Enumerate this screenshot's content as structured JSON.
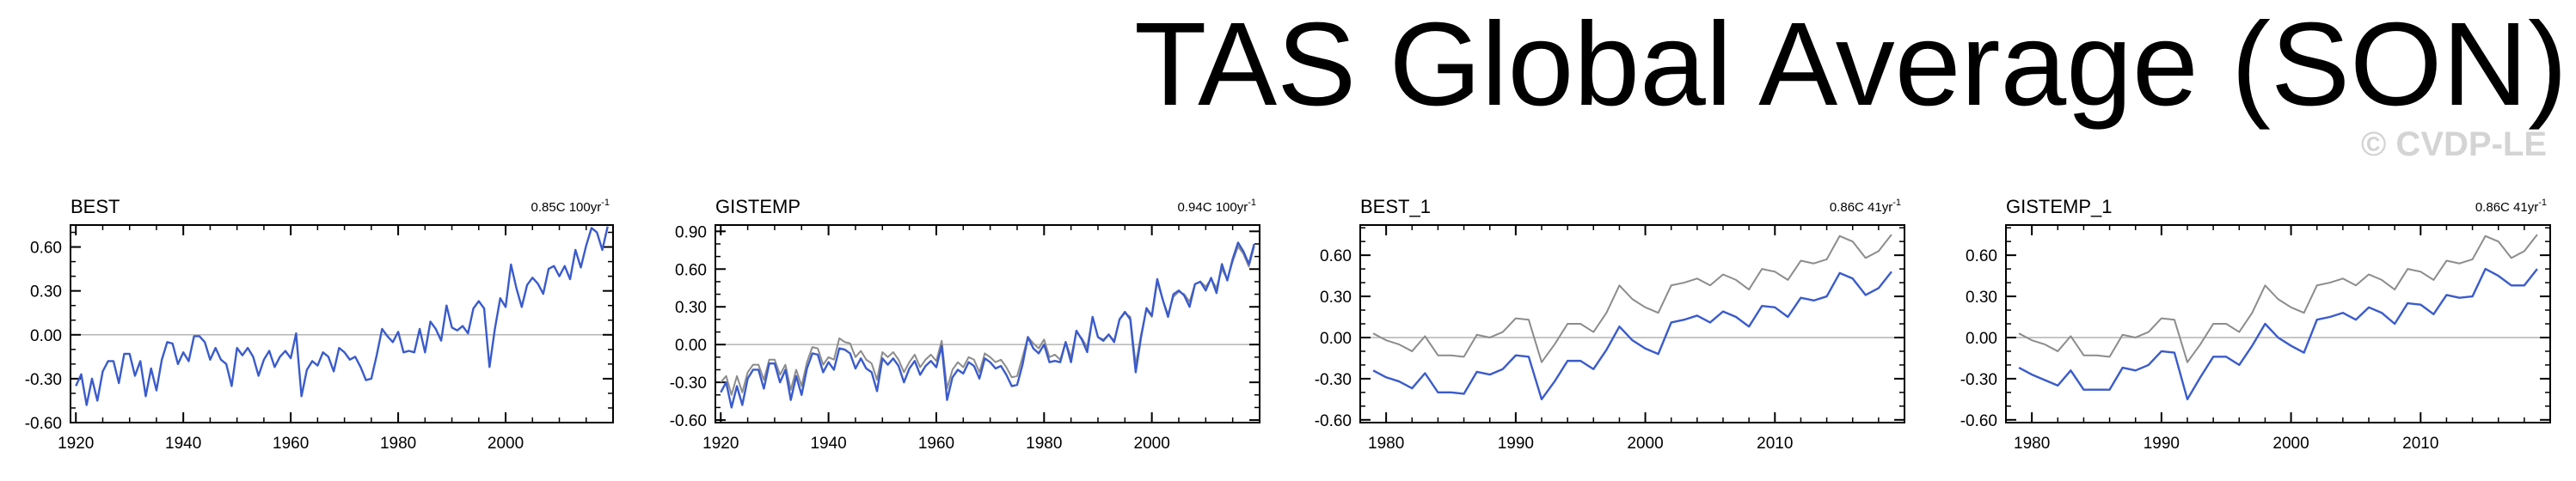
{
  "page": {
    "title": "TAS Global Average (SON)",
    "watermark": "© CVDP-LE"
  },
  "colors": {
    "primary": "#3a5bcc",
    "secondary": "#8c8c8c",
    "zero_line": "#b4b4b4",
    "axes": "#000000"
  },
  "chart_data": [
    {
      "type": "line",
      "title": "BEST",
      "trend_label": "0.85C 100yr",
      "trend_exp": "-1",
      "xlim": [
        1919,
        2020
      ],
      "ylim": [
        -0.6,
        0.75
      ],
      "yticks": [
        "0.60",
        "0.30",
        "0.00",
        "-0.30",
        "-0.60"
      ],
      "ytick_values": [
        0.6,
        0.3,
        0.0,
        -0.3,
        -0.6
      ],
      "xticks": [
        1920,
        1940,
        1960,
        1980,
        2000
      ],
      "x_start": 1920,
      "series": [
        {
          "color": "primary",
          "values": [
            -0.35,
            -0.27,
            -0.48,
            -0.3,
            -0.45,
            -0.25,
            -0.18,
            -0.18,
            -0.33,
            -0.13,
            -0.13,
            -0.28,
            -0.18,
            -0.42,
            -0.23,
            -0.38,
            -0.17,
            -0.05,
            -0.06,
            -0.2,
            -0.12,
            -0.18,
            -0.01,
            -0.01,
            -0.05,
            -0.17,
            -0.09,
            -0.17,
            -0.2,
            -0.35,
            -0.09,
            -0.14,
            -0.09,
            -0.15,
            -0.28,
            -0.17,
            -0.11,
            -0.22,
            -0.15,
            -0.11,
            -0.16,
            0.01,
            -0.42,
            -0.24,
            -0.18,
            -0.21,
            -0.12,
            -0.15,
            -0.25,
            -0.09,
            -0.12,
            -0.17,
            -0.15,
            -0.22,
            -0.31,
            -0.3,
            -0.14,
            0.04,
            -0.01,
            -0.05,
            0.02,
            -0.12,
            -0.11,
            -0.12,
            0.04,
            -0.12,
            0.09,
            0.04,
            -0.04,
            0.2,
            0.05,
            0.03,
            0.06,
            0.01,
            0.18,
            0.23,
            0.18,
            -0.22,
            0.04,
            0.25,
            0.19,
            0.48,
            0.32,
            0.19,
            0.34,
            0.39,
            0.35,
            0.28,
            0.45,
            0.47,
            0.4,
            0.47,
            0.38,
            0.58,
            0.46,
            0.61,
            0.73,
            0.7,
            0.58,
            0.74
          ]
        }
      ]
    },
    {
      "type": "line",
      "title": "GISTEMP",
      "trend_label": "0.94C 100yr",
      "trend_exp": "-1",
      "xlim": [
        1919,
        2020
      ],
      "ylim": [
        -0.62,
        0.95
      ],
      "yticks": [
        "0.90",
        "0.60",
        "0.30",
        "0.00",
        "-0.30",
        "-0.60"
      ],
      "ytick_values": [
        0.9,
        0.6,
        0.3,
        0.0,
        -0.3,
        -0.6
      ],
      "xticks": [
        1920,
        1940,
        1960,
        1980,
        2000
      ],
      "x_start": 1920,
      "series": [
        {
          "color": "secondary",
          "values": [
            -0.3,
            -0.25,
            -0.4,
            -0.25,
            -0.38,
            -0.22,
            -0.16,
            -0.16,
            -0.28,
            -0.12,
            -0.12,
            -0.24,
            -0.16,
            -0.36,
            -0.2,
            -0.33,
            -0.14,
            -0.02,
            -0.03,
            -0.16,
            -0.1,
            -0.12,
            0.05,
            0.02,
            0.01,
            -0.1,
            -0.05,
            -0.12,
            -0.15,
            -0.28,
            -0.06,
            -0.1,
            -0.06,
            -0.12,
            -0.22,
            -0.14,
            -0.08,
            -0.18,
            -0.12,
            -0.08,
            -0.13,
            0.03,
            -0.35,
            -0.2,
            -0.14,
            -0.18,
            -0.1,
            -0.12,
            -0.22,
            -0.07,
            -0.1,
            -0.14,
            -0.12,
            -0.18,
            -0.26,
            -0.25,
            -0.1,
            0.06,
            0.01,
            -0.03,
            0.04,
            -0.1,
            -0.08,
            -0.12,
            0.02,
            -0.1,
            0.1,
            0.05,
            -0.02,
            0.22,
            0.06,
            0.04,
            0.08,
            0.03,
            0.2,
            0.25,
            0.22,
            -0.16,
            0.08,
            0.28,
            0.22,
            0.5,
            0.36,
            0.24,
            0.38,
            0.42,
            0.4,
            0.34,
            0.48,
            0.5,
            0.46,
            0.52,
            0.45,
            0.6,
            0.52,
            0.66,
            0.78,
            0.72,
            0.62,
            0.78
          ]
        },
        {
          "color": "primary",
          "values": [
            -0.38,
            -0.3,
            -0.5,
            -0.33,
            -0.48,
            -0.27,
            -0.2,
            -0.2,
            -0.35,
            -0.15,
            -0.15,
            -0.3,
            -0.2,
            -0.44,
            -0.25,
            -0.4,
            -0.19,
            -0.07,
            -0.08,
            -0.22,
            -0.14,
            -0.2,
            -0.03,
            -0.04,
            -0.07,
            -0.19,
            -0.11,
            -0.19,
            -0.22,
            -0.37,
            -0.11,
            -0.16,
            -0.11,
            -0.17,
            -0.3,
            -0.19,
            -0.13,
            -0.24,
            -0.17,
            -0.13,
            -0.18,
            -0.01,
            -0.44,
            -0.26,
            -0.2,
            -0.23,
            -0.14,
            -0.17,
            -0.27,
            -0.11,
            -0.14,
            -0.19,
            -0.17,
            -0.24,
            -0.33,
            -0.32,
            -0.16,
            0.06,
            -0.03,
            -0.07,
            0.0,
            -0.14,
            -0.13,
            -0.14,
            0.02,
            -0.14,
            0.11,
            0.04,
            -0.06,
            0.22,
            0.06,
            0.03,
            0.08,
            0.02,
            0.2,
            0.26,
            0.2,
            -0.22,
            0.06,
            0.29,
            0.23,
            0.52,
            0.36,
            0.22,
            0.4,
            0.43,
            0.39,
            0.3,
            0.48,
            0.5,
            0.43,
            0.53,
            0.41,
            0.64,
            0.51,
            0.68,
            0.81,
            0.74,
            0.64,
            0.8
          ]
        }
      ]
    },
    {
      "type": "line",
      "title": "BEST_1",
      "trend_label": "0.86C 41yr",
      "trend_exp": "-1",
      "xlim": [
        1978,
        2020
      ],
      "ylim": [
        -0.62,
        0.82
      ],
      "yticks": [
        "0.60",
        "0.30",
        "0.00",
        "-0.30",
        "-0.60"
      ],
      "ytick_values": [
        0.6,
        0.3,
        0.0,
        -0.3,
        -0.6
      ],
      "xticks": [
        1980,
        1990,
        2000,
        2010
      ],
      "x_start": 1979,
      "series": [
        {
          "color": "secondary",
          "values": [
            0.03,
            -0.02,
            -0.05,
            -0.1,
            0.01,
            -0.13,
            -0.13,
            -0.14,
            0.02,
            0.0,
            0.04,
            0.14,
            0.13,
            -0.18,
            -0.05,
            0.1,
            0.1,
            0.04,
            0.18,
            0.38,
            0.28,
            0.22,
            0.18,
            0.38,
            0.4,
            0.43,
            0.38,
            0.46,
            0.42,
            0.35,
            0.5,
            0.48,
            0.42,
            0.56,
            0.54,
            0.57,
            0.74,
            0.7,
            0.58,
            0.63,
            0.75
          ]
        },
        {
          "color": "primary",
          "values": [
            -0.24,
            -0.29,
            -0.32,
            -0.37,
            -0.26,
            -0.4,
            -0.4,
            -0.41,
            -0.25,
            -0.27,
            -0.23,
            -0.13,
            -0.14,
            -0.45,
            -0.32,
            -0.17,
            -0.17,
            -0.23,
            -0.09,
            0.08,
            -0.02,
            -0.08,
            -0.12,
            0.11,
            0.13,
            0.16,
            0.11,
            0.19,
            0.15,
            0.08,
            0.23,
            0.22,
            0.15,
            0.29,
            0.27,
            0.3,
            0.47,
            0.43,
            0.31,
            0.36,
            0.48
          ]
        }
      ]
    },
    {
      "type": "line",
      "title": "GISTEMP_1",
      "trend_label": "0.86C 41yr",
      "trend_exp": "-1",
      "xlim": [
        1978,
        2020
      ],
      "ylim": [
        -0.62,
        0.82
      ],
      "yticks": [
        "0.60",
        "0.30",
        "0.00",
        "-0.30",
        "-0.60"
      ],
      "ytick_values": [
        0.6,
        0.3,
        0.0,
        -0.3,
        -0.6
      ],
      "xticks": [
        1980,
        1990,
        2000,
        2010
      ],
      "x_start": 1979,
      "series": [
        {
          "color": "secondary",
          "values": [
            0.03,
            -0.02,
            -0.05,
            -0.1,
            0.01,
            -0.13,
            -0.13,
            -0.14,
            0.02,
            0.0,
            0.04,
            0.14,
            0.13,
            -0.18,
            -0.05,
            0.1,
            0.1,
            0.04,
            0.18,
            0.38,
            0.28,
            0.22,
            0.18,
            0.38,
            0.4,
            0.43,
            0.38,
            0.46,
            0.42,
            0.35,
            0.5,
            0.48,
            0.42,
            0.56,
            0.54,
            0.57,
            0.74,
            0.7,
            0.58,
            0.63,
            0.75
          ]
        },
        {
          "color": "primary",
          "values": [
            -0.22,
            -0.27,
            -0.31,
            -0.35,
            -0.24,
            -0.38,
            -0.38,
            -0.38,
            -0.22,
            -0.24,
            -0.2,
            -0.1,
            -0.11,
            -0.45,
            -0.29,
            -0.14,
            -0.14,
            -0.2,
            -0.06,
            0.1,
            0.0,
            -0.06,
            -0.11,
            0.13,
            0.15,
            0.18,
            0.13,
            0.22,
            0.18,
            0.1,
            0.25,
            0.24,
            0.17,
            0.31,
            0.29,
            0.3,
            0.5,
            0.45,
            0.38,
            0.38,
            0.5
          ]
        }
      ]
    }
  ]
}
